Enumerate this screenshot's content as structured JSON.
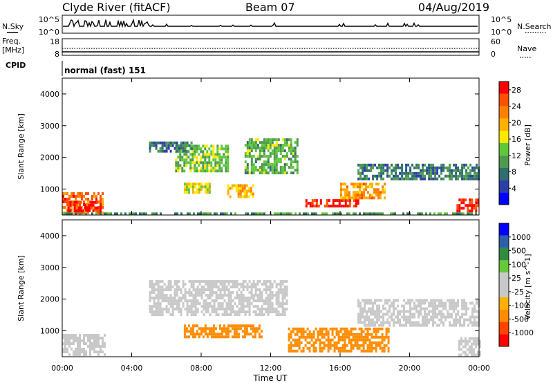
{
  "header": {
    "station": "Clyde River (fitACF)",
    "beam": "Beam 07",
    "date": "04/Aug/2019"
  },
  "strip_labels": {
    "nsky": "N.Sky",
    "nsearch": "N.Search",
    "nsky_top": "10^5",
    "nsky_bottom": "10^0",
    "nsearch_top": "10^5",
    "nsearch_bottom": "10^0",
    "freq_line1": "Freq.",
    "freq_line2": "[MHz]",
    "freq_top": "18",
    "freq_bottom": "8",
    "nave": "Nave",
    "nave_top": "60",
    "nave_bottom": "0",
    "cpid": "CPID",
    "cpid_text": "normal (fast) 151"
  },
  "colors": {
    "power": [
      "#0000ff",
      "#2b3fa6",
      "#2f6e6e",
      "#4d9a4d",
      "#5fc73a",
      "#ffe800",
      "#ffb000",
      "#ff8000",
      "#ff5000",
      "#ff0000"
    ],
    "velocity": [
      "#ff0000",
      "#ff4400",
      "#ff8c00",
      "#ffb000",
      "#c8c8c8",
      "#c8c8c8",
      "#66c83a",
      "#2e8b40",
      "#2b5fa6",
      "#0000ff"
    ]
  },
  "chart_data": [
    {
      "type": "heatmap",
      "panel": "power",
      "ylabel": "Slant Range [km]",
      "xlim": [
        "00:00",
        "24:00"
      ],
      "ylim": [
        180,
        4500
      ],
      "x_ticks": [
        "00:00",
        "04:00",
        "08:00",
        "12:00",
        "16:00",
        "20:00",
        "00:00"
      ],
      "y_ticks": [
        1000,
        2000,
        3000,
        4000
      ],
      "colorbar": {
        "label": "Power [dB]",
        "ticks": [
          4,
          8,
          12,
          16,
          20,
          24,
          28
        ],
        "range": [
          0,
          30
        ]
      },
      "regions": [
        {
          "t_start": 0.0,
          "t_end": 2.3,
          "r_start": 250,
          "r_end": 900,
          "value": 24
        },
        {
          "t_start": 0.3,
          "t_end": 2.0,
          "r_start": 320,
          "r_end": 620,
          "value": 29
        },
        {
          "t_start": 14.0,
          "t_end": 17.0,
          "r_start": 430,
          "r_end": 680,
          "value": 29
        },
        {
          "t_start": 22.7,
          "t_end": 24.0,
          "r_start": 300,
          "r_end": 700,
          "value": 28
        },
        {
          "t_start": 16.0,
          "t_end": 18.6,
          "r_start": 700,
          "r_end": 1200,
          "value": 21
        },
        {
          "t_start": 7.0,
          "t_end": 8.5,
          "r_start": 900,
          "r_end": 1200,
          "value": 17
        },
        {
          "t_start": 9.5,
          "t_end": 11.0,
          "r_start": 800,
          "r_end": 1150,
          "value": 19
        },
        {
          "t_start": 6.5,
          "t_end": 9.5,
          "r_start": 1600,
          "r_end": 2400,
          "value": 13
        },
        {
          "t_start": 10.5,
          "t_end": 13.5,
          "r_start": 1500,
          "r_end": 2600,
          "value": 12
        },
        {
          "t_start": 5.0,
          "t_end": 7.5,
          "r_start": 2200,
          "r_end": 2500,
          "value": 8
        },
        {
          "t_start": 17.0,
          "t_end": 24.0,
          "r_start": 1300,
          "r_end": 1800,
          "value": 8
        },
        {
          "t_start": 0.0,
          "t_end": 24.0,
          "r_start": 180,
          "r_end": 260,
          "value": 10
        }
      ]
    },
    {
      "type": "heatmap",
      "panel": "velocity",
      "ylabel": "Slant Range [km]",
      "xlabel": "Time UT",
      "xlim": [
        "00:00",
        "24:00"
      ],
      "ylim": [
        180,
        4500
      ],
      "x_ticks": [
        "00:00",
        "04:00",
        "08:00",
        "12:00",
        "16:00",
        "20:00",
        "00:00"
      ],
      "y_ticks": [
        1000,
        2000,
        3000,
        4000
      ],
      "colorbar": {
        "label": "Velocity [m s^-1]",
        "ticks": [
          1000,
          500,
          100,
          25,
          -25,
          -100,
          -500,
          -1000
        ]
      },
      "regions": [
        {
          "t_start": 0.0,
          "t_end": 2.5,
          "r_start": 250,
          "r_end": 900,
          "value": 0
        },
        {
          "t_start": 13.0,
          "t_end": 18.8,
          "r_start": 400,
          "r_end": 1100,
          "value": -200
        },
        {
          "t_start": 7.0,
          "t_end": 11.5,
          "r_start": 800,
          "r_end": 1200,
          "value": -200
        },
        {
          "t_start": 5.0,
          "t_end": 13.0,
          "r_start": 1500,
          "r_end": 2600,
          "value": 0
        },
        {
          "t_start": 17.0,
          "t_end": 24.0,
          "r_start": 1200,
          "r_end": 2000,
          "value": 0
        },
        {
          "t_start": 22.8,
          "t_end": 24.0,
          "r_start": 250,
          "r_end": 800,
          "value": 0
        }
      ]
    }
  ]
}
